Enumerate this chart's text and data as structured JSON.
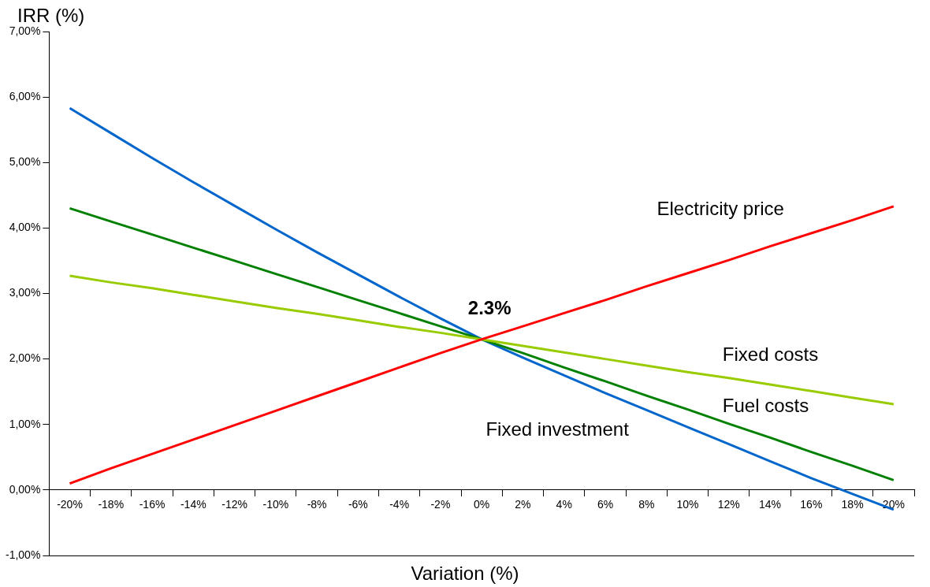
{
  "chart_data": {
    "type": "line",
    "xlabel": "Variation (%)",
    "ylabel": "IRR (%)",
    "categories": [
      "-20%",
      "-18%",
      "-16%",
      "-14%",
      "-12%",
      "-10%",
      "-8%",
      "-6%",
      "-4%",
      "-2%",
      "0%",
      "2%",
      "4%",
      "6%",
      "8%",
      "10%",
      "12%",
      "14%",
      "16%",
      "18%",
      "20%"
    ],
    "series": [
      {
        "name": "Electricity price",
        "color": "#ff0000",
        "values": [
          0.1,
          0.33,
          0.55,
          0.77,
          0.99,
          1.21,
          1.43,
          1.65,
          1.87,
          2.09,
          2.3,
          2.5,
          2.7,
          2.9,
          3.11,
          3.31,
          3.51,
          3.72,
          3.92,
          4.12,
          4.33
        ]
      },
      {
        "name": "Fixed costs",
        "color": "#99cc00",
        "values": [
          3.27,
          3.17,
          3.08,
          2.98,
          2.88,
          2.78,
          2.69,
          2.59,
          2.49,
          2.4,
          2.3,
          2.2,
          2.1,
          2.0,
          1.9,
          1.8,
          1.71,
          1.61,
          1.51,
          1.41,
          1.31
        ]
      },
      {
        "name": "Fuel costs",
        "color": "#008000",
        "values": [
          4.3,
          4.1,
          3.9,
          3.7,
          3.5,
          3.3,
          3.1,
          2.9,
          2.7,
          2.5,
          2.3,
          2.09,
          1.87,
          1.66,
          1.44,
          1.23,
          1.01,
          0.8,
          0.58,
          0.37,
          0.15
        ]
      },
      {
        "name": "Fixed investment",
        "color": "#0066cc",
        "values": [
          5.83,
          5.45,
          5.07,
          4.7,
          4.34,
          3.98,
          3.63,
          3.29,
          2.95,
          2.62,
          2.3,
          2.02,
          1.75,
          1.48,
          1.22,
          0.96,
          0.7,
          0.44,
          0.18,
          -0.06,
          -0.3
        ]
      }
    ],
    "ylim": [
      -1,
      7
    ],
    "yticks": [
      {
        "value": -1,
        "label": "-1,00%"
      },
      {
        "value": 0,
        "label": "0,00%"
      },
      {
        "value": 1,
        "label": "1,00%"
      },
      {
        "value": 2,
        "label": "2,00%"
      },
      {
        "value": 3,
        "label": "3,00%"
      },
      {
        "value": 4,
        "label": "4,00%"
      },
      {
        "value": 5,
        "label": "5,00%"
      },
      {
        "value": 6,
        "label": "6,00%"
      },
      {
        "value": 7,
        "label": "7,00%"
      }
    ],
    "grid": false,
    "legend": false,
    "marker": "none",
    "line_style": "solid",
    "annotations": [
      {
        "text": "2.3%",
        "x": "0%",
        "y": 2.3
      }
    ]
  }
}
